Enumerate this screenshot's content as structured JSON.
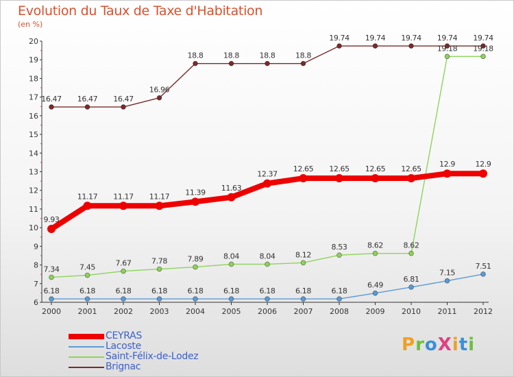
{
  "title": "Evolution du Taux de Taxe d'Habitation",
  "unit": "(en %)",
  "logo": {
    "text": "ProXiti",
    "letters": [
      {
        "ch": "P",
        "color": "#f0a020"
      },
      {
        "ch": "r",
        "color": "#6fbf3a"
      },
      {
        "ch": "o",
        "color": "#3a8fd8"
      },
      {
        "ch": "X",
        "color": "#e04080"
      },
      {
        "ch": "i",
        "color": "#f0a020"
      },
      {
        "ch": "t",
        "color": "#3a8fd8"
      },
      {
        "ch": "i",
        "color": "#6fbf3a"
      }
    ]
  },
  "chart_data": {
    "type": "line",
    "title": "Evolution du Taux de Taxe d'Habitation",
    "ylabel": "(en %)",
    "x": [
      2000,
      2001,
      2002,
      2003,
      2004,
      2005,
      2006,
      2007,
      2008,
      2009,
      2010,
      2011,
      2012
    ],
    "ylim": [
      6,
      20
    ],
    "yticks": [
      6,
      7,
      8,
      9,
      10,
      11,
      12,
      13,
      14,
      15,
      16,
      17,
      18,
      19,
      20
    ],
    "grid": false,
    "legend": "bottom-left",
    "series": [
      {
        "name": "CEYRAS",
        "color": "#ee0000",
        "values": [
          9.93,
          11.17,
          11.17,
          11.17,
          11.39,
          11.63,
          12.37,
          12.65,
          12.65,
          12.65,
          12.65,
          12.9,
          12.9
        ],
        "labels": [
          "9.93",
          "11.17",
          "11.17",
          "11.17",
          "11.39",
          "11.63",
          "12.37",
          "12.65",
          "12.65",
          "12.65",
          "12.65",
          "12.9",
          "12.9"
        ]
      },
      {
        "name": "Lacoste",
        "color": "#5b9bd5",
        "values": [
          6.18,
          6.18,
          6.18,
          6.18,
          6.18,
          6.18,
          6.18,
          6.18,
          6.18,
          6.49,
          6.81,
          7.15,
          7.51
        ],
        "labels": [
          "6.18",
          "6.18",
          "6.18",
          "6.18",
          "6.18",
          "6.18",
          "6.18",
          "6.18",
          "6.18",
          "6.49",
          "6.81",
          "7.15",
          "7.51"
        ]
      },
      {
        "name": "Saint-Félix-de-Lodez",
        "color": "#8ed35a",
        "values": [
          7.34,
          7.45,
          7.67,
          7.78,
          7.89,
          8.04,
          8.04,
          8.12,
          8.53,
          8.62,
          8.62,
          19.18,
          19.18
        ],
        "labels": [
          "7.34",
          "7.45",
          "7.67",
          "7.78",
          "7.89",
          "8.04",
          "8.04",
          "8.12",
          "8.53",
          "8.62",
          "8.62",
          "19.18",
          "19.18"
        ]
      },
      {
        "name": "Brignac",
        "color": "#7a2a2a",
        "values": [
          16.47,
          16.47,
          16.47,
          16.96,
          18.8,
          18.8,
          18.8,
          18.8,
          19.74,
          19.74,
          19.74,
          19.74,
          19.74
        ],
        "labels": [
          "16.47",
          "16.47",
          "16.47",
          "16.96",
          "18.8",
          "18.8",
          "18.8",
          "18.8",
          "19.74",
          "19.74",
          "19.74",
          "19.74",
          "19.74"
        ]
      }
    ]
  }
}
